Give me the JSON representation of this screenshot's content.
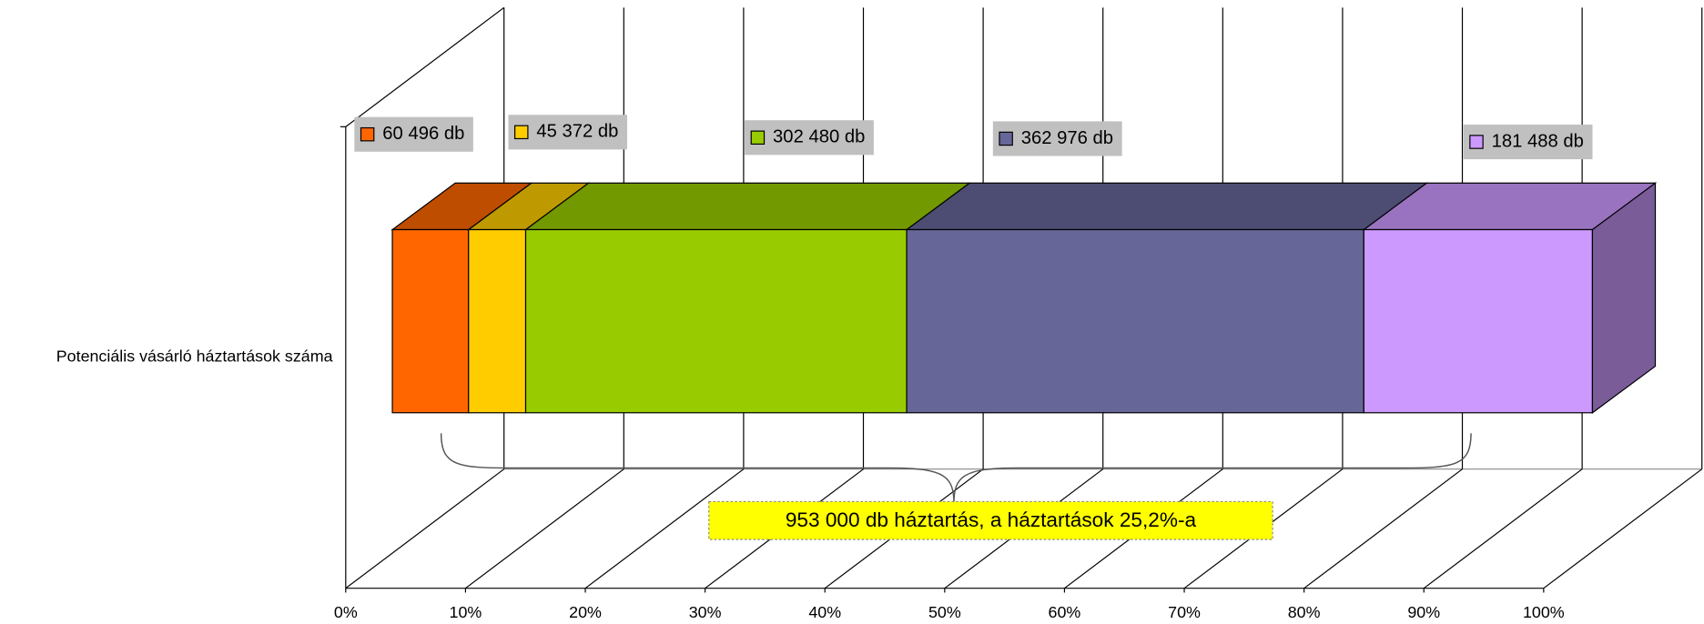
{
  "chart_data": {
    "type": "bar",
    "orientation": "horizontal",
    "stacking": "percent",
    "categories": [
      "Potenciális vásárló háztartások száma"
    ],
    "series": [
      {
        "color": "#ff6600",
        "values": [
          60496
        ],
        "value_labels": [
          "60 496 db"
        ]
      },
      {
        "color": "#ffcc00",
        "values": [
          45372
        ],
        "value_labels": [
          "45 372 db"
        ]
      },
      {
        "color": "#99cc00",
        "values": [
          302480
        ],
        "value_labels": [
          "302 480 db"
        ]
      },
      {
        "color": "#666699",
        "values": [
          362976
        ],
        "value_labels": [
          "362 976 db"
        ]
      },
      {
        "color": "#cc99ff",
        "values": [
          181488
        ],
        "value_labels": [
          "181 488 db"
        ]
      }
    ],
    "xlim": [
      0,
      100
    ],
    "xticks": [
      {
        "value": 0,
        "label": "0%"
      },
      {
        "value": 10,
        "label": "10%"
      },
      {
        "value": 20,
        "label": "20%"
      },
      {
        "value": 30,
        "label": "30%"
      },
      {
        "value": 40,
        "label": "40%"
      },
      {
        "value": 50,
        "label": "50%"
      },
      {
        "value": 60,
        "label": "60%"
      },
      {
        "value": 70,
        "label": "70%"
      },
      {
        "value": 80,
        "label": "80%"
      },
      {
        "value": 90,
        "label": "90%"
      },
      {
        "value": 100,
        "label": "100%"
      }
    ],
    "grid": true,
    "annotation": "953 000 db háztartás, a háztartások 25,2%-a",
    "annotation_color": "#ffff00"
  }
}
